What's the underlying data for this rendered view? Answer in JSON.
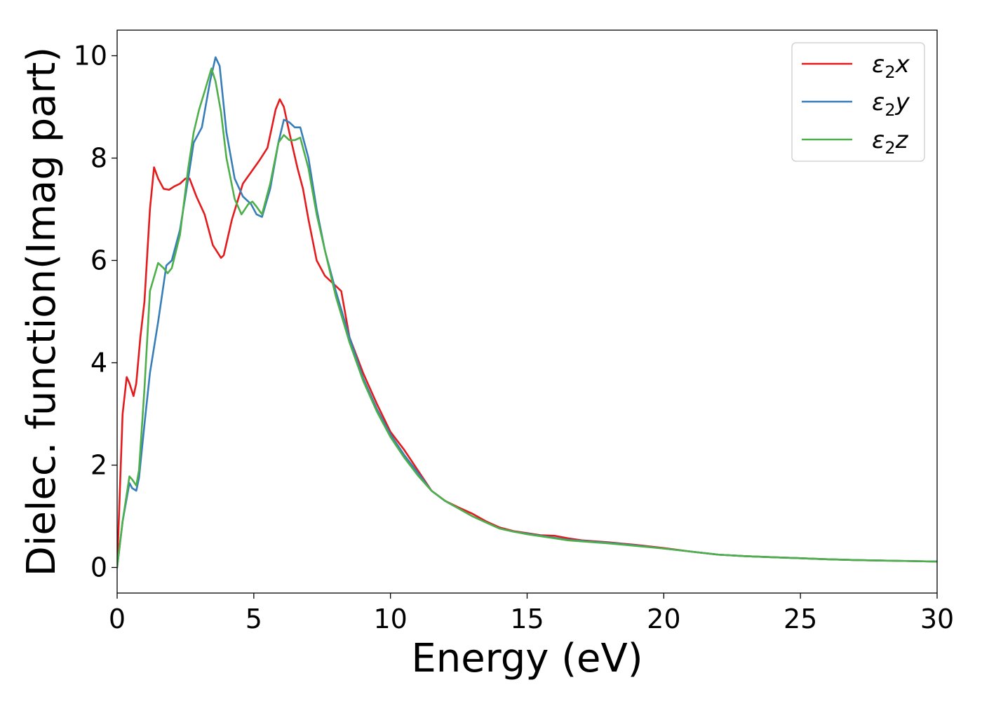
{
  "chart_data": {
    "type": "line",
    "xlabel": "Energy (eV)",
    "ylabel": "Dielec. function(Imag part)",
    "xlim": [
      0,
      30
    ],
    "ylim": [
      -0.5,
      10.5
    ],
    "xticks": [
      0,
      5,
      10,
      15,
      20,
      25,
      30
    ],
    "yticks": [
      0,
      2,
      4,
      6,
      8,
      10
    ],
    "legend": "top-right",
    "grid": false,
    "series": [
      {
        "name": "ε2x",
        "legend_sym": "ε",
        "legend_sub": "2",
        "legend_var": "x",
        "color": "#e41a1c",
        "points": [
          [
            0,
            0
          ],
          [
            0.1,
            1.5
          ],
          [
            0.2,
            3.0
          ],
          [
            0.35,
            3.72
          ],
          [
            0.45,
            3.6
          ],
          [
            0.6,
            3.35
          ],
          [
            0.7,
            3.6
          ],
          [
            0.85,
            4.5
          ],
          [
            1.0,
            5.2
          ],
          [
            1.2,
            7.0
          ],
          [
            1.35,
            7.82
          ],
          [
            1.5,
            7.6
          ],
          [
            1.7,
            7.4
          ],
          [
            1.9,
            7.38
          ],
          [
            2.1,
            7.45
          ],
          [
            2.3,
            7.5
          ],
          [
            2.5,
            7.6
          ],
          [
            2.65,
            7.6
          ],
          [
            2.9,
            7.25
          ],
          [
            3.2,
            6.9
          ],
          [
            3.5,
            6.3
          ],
          [
            3.8,
            6.05
          ],
          [
            3.9,
            6.1
          ],
          [
            4.2,
            6.8
          ],
          [
            4.6,
            7.5
          ],
          [
            5.0,
            7.8
          ],
          [
            5.2,
            7.95
          ],
          [
            5.5,
            8.2
          ],
          [
            5.8,
            8.95
          ],
          [
            5.95,
            9.15
          ],
          [
            6.1,
            9.0
          ],
          [
            6.3,
            8.5
          ],
          [
            6.6,
            7.8
          ],
          [
            6.8,
            7.4
          ],
          [
            7.0,
            6.8
          ],
          [
            7.3,
            6.0
          ],
          [
            7.6,
            5.7
          ],
          [
            7.9,
            5.55
          ],
          [
            8.2,
            5.4
          ],
          [
            8.5,
            4.5
          ],
          [
            9.0,
            3.8
          ],
          [
            9.5,
            3.2
          ],
          [
            10.0,
            2.65
          ],
          [
            10.5,
            2.3
          ],
          [
            11.0,
            1.9
          ],
          [
            11.5,
            1.5
          ],
          [
            12.0,
            1.3
          ],
          [
            12.5,
            1.17
          ],
          [
            13.0,
            1.05
          ],
          [
            13.5,
            0.9
          ],
          [
            14.0,
            0.78
          ],
          [
            14.5,
            0.71
          ],
          [
            15.0,
            0.67
          ],
          [
            15.5,
            0.63
          ],
          [
            16.0,
            0.62
          ],
          [
            16.5,
            0.57
          ],
          [
            17.0,
            0.53
          ],
          [
            18.0,
            0.49
          ],
          [
            19.0,
            0.44
          ],
          [
            20.0,
            0.38
          ],
          [
            21.0,
            0.31
          ],
          [
            22.0,
            0.25
          ],
          [
            23.0,
            0.22
          ],
          [
            24.0,
            0.2
          ],
          [
            25.0,
            0.18
          ],
          [
            26.0,
            0.16
          ],
          [
            27.0,
            0.145
          ],
          [
            28.0,
            0.135
          ],
          [
            29.0,
            0.125
          ],
          [
            30.0,
            0.115
          ]
        ]
      },
      {
        "name": "ε2y",
        "legend_sym": "ε",
        "legend_sub": "2",
        "legend_var": "y",
        "color": "#377eb8",
        "points": [
          [
            0,
            0
          ],
          [
            0.2,
            0.9
          ],
          [
            0.45,
            1.65
          ],
          [
            0.55,
            1.55
          ],
          [
            0.7,
            1.5
          ],
          [
            0.8,
            1.75
          ],
          [
            1.0,
            2.8
          ],
          [
            1.2,
            3.8
          ],
          [
            1.5,
            4.8
          ],
          [
            1.8,
            5.9
          ],
          [
            2.0,
            6.0
          ],
          [
            2.3,
            6.6
          ],
          [
            2.6,
            7.6
          ],
          [
            2.8,
            8.3
          ],
          [
            3.1,
            8.6
          ],
          [
            3.4,
            9.5
          ],
          [
            3.6,
            9.97
          ],
          [
            3.75,
            9.8
          ],
          [
            4.0,
            8.5
          ],
          [
            4.3,
            7.6
          ],
          [
            4.6,
            7.25
          ],
          [
            4.9,
            7.1
          ],
          [
            5.1,
            6.9
          ],
          [
            5.3,
            6.85
          ],
          [
            5.6,
            7.4
          ],
          [
            5.9,
            8.3
          ],
          [
            6.1,
            8.75
          ],
          [
            6.3,
            8.7
          ],
          [
            6.5,
            8.6
          ],
          [
            6.7,
            8.6
          ],
          [
            7.0,
            8.0
          ],
          [
            7.3,
            7.0
          ],
          [
            7.6,
            6.2
          ],
          [
            8.0,
            5.4
          ],
          [
            8.5,
            4.5
          ],
          [
            9.0,
            3.7
          ],
          [
            9.5,
            3.1
          ],
          [
            10.0,
            2.6
          ],
          [
            10.5,
            2.2
          ],
          [
            11.0,
            1.85
          ],
          [
            11.5,
            1.5
          ],
          [
            12.0,
            1.3
          ],
          [
            12.5,
            1.15
          ],
          [
            13.0,
            1.0
          ],
          [
            13.5,
            0.88
          ],
          [
            14.0,
            0.76
          ],
          [
            14.5,
            0.7
          ],
          [
            15.0,
            0.66
          ],
          [
            15.5,
            0.62
          ],
          [
            16.0,
            0.58
          ],
          [
            16.5,
            0.54
          ],
          [
            17.0,
            0.52
          ],
          [
            18.0,
            0.48
          ],
          [
            19.0,
            0.43
          ],
          [
            20.0,
            0.37
          ],
          [
            21.0,
            0.31
          ],
          [
            22.0,
            0.25
          ],
          [
            23.0,
            0.22
          ],
          [
            24.0,
            0.2
          ],
          [
            25.0,
            0.18
          ],
          [
            26.0,
            0.16
          ],
          [
            27.0,
            0.145
          ],
          [
            28.0,
            0.135
          ],
          [
            29.0,
            0.125
          ],
          [
            30.0,
            0.115
          ]
        ]
      },
      {
        "name": "ε2z",
        "legend_sym": "ε",
        "legend_sub": "2",
        "legend_var": "z",
        "color": "#4daf4a",
        "points": [
          [
            0,
            0
          ],
          [
            0.2,
            0.9
          ],
          [
            0.45,
            1.78
          ],
          [
            0.55,
            1.72
          ],
          [
            0.7,
            1.6
          ],
          [
            0.8,
            1.9
          ],
          [
            1.0,
            3.5
          ],
          [
            1.2,
            5.4
          ],
          [
            1.5,
            5.95
          ],
          [
            1.7,
            5.85
          ],
          [
            1.85,
            5.75
          ],
          [
            2.0,
            5.85
          ],
          [
            2.3,
            6.5
          ],
          [
            2.6,
            7.8
          ],
          [
            2.8,
            8.5
          ],
          [
            3.0,
            8.95
          ],
          [
            3.2,
            9.3
          ],
          [
            3.45,
            9.75
          ],
          [
            3.6,
            9.5
          ],
          [
            3.8,
            8.9
          ],
          [
            4.0,
            8.0
          ],
          [
            4.3,
            7.2
          ],
          [
            4.55,
            6.9
          ],
          [
            4.8,
            7.1
          ],
          [
            4.95,
            7.15
          ],
          [
            5.1,
            7.05
          ],
          [
            5.3,
            6.9
          ],
          [
            5.6,
            7.5
          ],
          [
            5.9,
            8.3
          ],
          [
            6.1,
            8.45
          ],
          [
            6.3,
            8.35
          ],
          [
            6.5,
            8.35
          ],
          [
            6.7,
            8.4
          ],
          [
            7.0,
            7.8
          ],
          [
            7.3,
            6.9
          ],
          [
            7.6,
            6.2
          ],
          [
            8.0,
            5.3
          ],
          [
            8.5,
            4.4
          ],
          [
            9.0,
            3.65
          ],
          [
            9.5,
            3.05
          ],
          [
            10.0,
            2.55
          ],
          [
            10.5,
            2.15
          ],
          [
            11.0,
            1.8
          ],
          [
            11.5,
            1.5
          ],
          [
            12.0,
            1.3
          ],
          [
            12.5,
            1.15
          ],
          [
            13.0,
            1.0
          ],
          [
            13.5,
            0.88
          ],
          [
            14.0,
            0.76
          ],
          [
            14.5,
            0.7
          ],
          [
            15.0,
            0.65
          ],
          [
            15.5,
            0.61
          ],
          [
            16.0,
            0.57
          ],
          [
            16.5,
            0.53
          ],
          [
            17.0,
            0.51
          ],
          [
            18.0,
            0.47
          ],
          [
            19.0,
            0.42
          ],
          [
            20.0,
            0.37
          ],
          [
            21.0,
            0.31
          ],
          [
            22.0,
            0.25
          ],
          [
            23.0,
            0.22
          ],
          [
            24.0,
            0.2
          ],
          [
            25.0,
            0.18
          ],
          [
            26.0,
            0.16
          ],
          [
            27.0,
            0.145
          ],
          [
            28.0,
            0.135
          ],
          [
            29.0,
            0.125
          ],
          [
            30.0,
            0.115
          ]
        ]
      }
    ]
  }
}
